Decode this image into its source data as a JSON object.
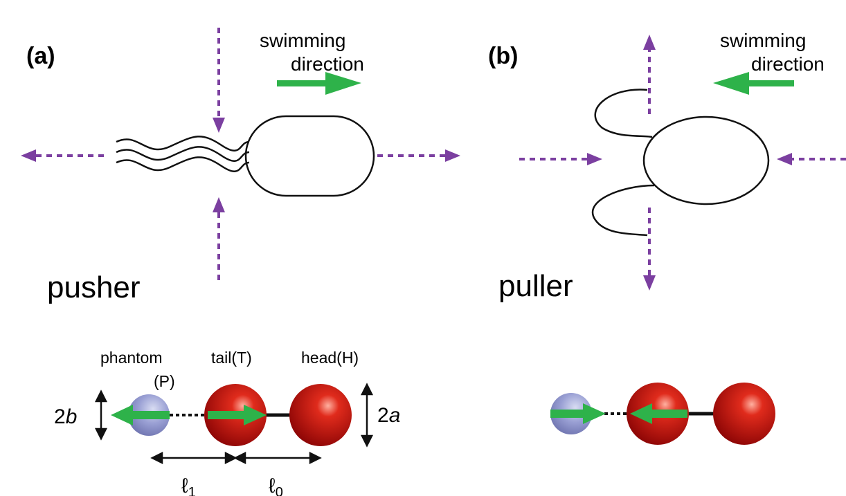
{
  "panels": [
    {
      "label": "(a)",
      "direction": [
        "swimming",
        "direction"
      ],
      "name": "pusher"
    },
    {
      "label": "(b)",
      "direction": [
        "swimming",
        "direction"
      ],
      "name": "puller"
    }
  ],
  "model": {
    "phantom": "phantom",
    "phantom_abbr": "(P)",
    "tail": "tail(T)",
    "head": "head(H)",
    "size_b": {
      "num": "2",
      "sym": "b"
    },
    "size_a": {
      "num": "2",
      "sym": "a"
    },
    "length_1": {
      "sym": "ℓ",
      "sub": "1"
    },
    "length_0": {
      "sym": "ℓ",
      "sub": "0"
    }
  }
}
